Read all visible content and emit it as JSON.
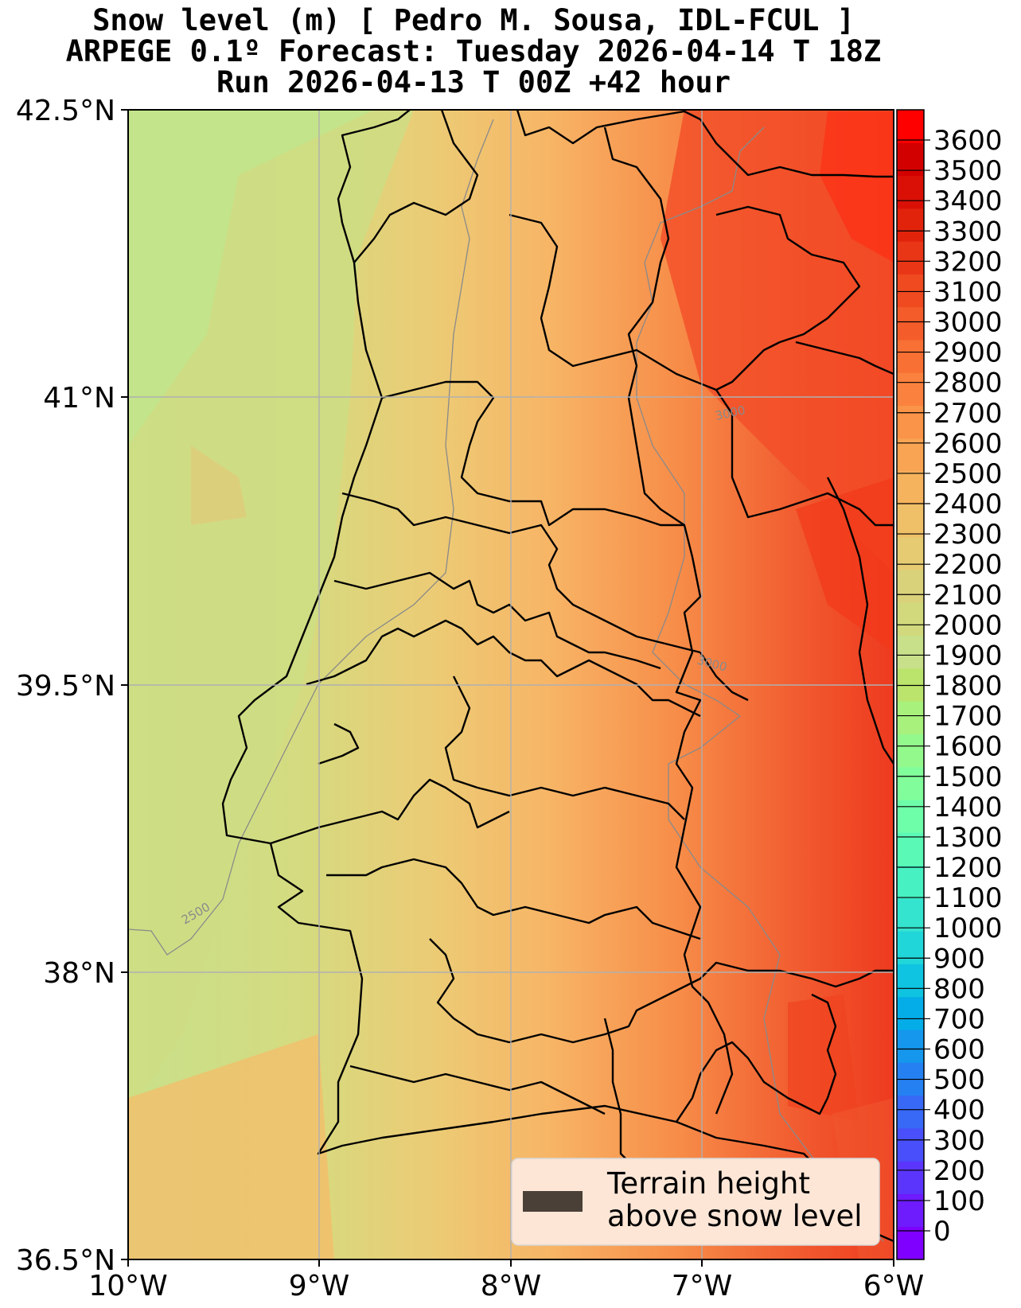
{
  "title": {
    "line1": "Snow level (m) [ Pedro M. Sousa, IDL-FCUL ]",
    "line2": "ARPEGE 0.1º Forecast: Tuesday 2026-04-14 T 18Z",
    "line3": "Run 2026-04-13 T 00Z +42 hour"
  },
  "map": {
    "lon_range": [
      -10,
      -6
    ],
    "lat_range": [
      36.5,
      42.5
    ],
    "x_ticks": [
      "10°W",
      "9°W",
      "8°W",
      "7°W",
      "6°W"
    ],
    "y_ticks": [
      "42.5°N",
      "41°N",
      "39.5°N",
      "38°N",
      "36.5°N"
    ],
    "grid": true,
    "contour_labels": [
      "2500",
      "3000",
      "3000"
    ],
    "region": "Portugal / western Iberia"
  },
  "legend": {
    "line1": "Terrain height",
    "line2": "above snow level",
    "swatch_color": "#4a4038",
    "placement": "bottom-right"
  },
  "colorbar": {
    "labels": [
      "0",
      "100",
      "200",
      "300",
      "400",
      "500",
      "600",
      "700",
      "800",
      "900",
      "1000",
      "1100",
      "1200",
      "1300",
      "1400",
      "1500",
      "1600",
      "1700",
      "1800",
      "1900",
      "2000",
      "2100",
      "2200",
      "2300",
      "2400",
      "2500",
      "2600",
      "2700",
      "2800",
      "2900",
      "3000",
      "3100",
      "3200",
      "3300",
      "3400",
      "3500",
      "3600"
    ],
    "colors": [
      "#7f00ff",
      "#6e1bfe",
      "#5b35fc",
      "#494ffa",
      "#3768f6",
      "#2581f2",
      "#1497ed",
      "#04ade8",
      "#0ec4e1",
      "#21d6d8",
      "#34e4ce",
      "#47f1c2",
      "#5bf9b6",
      "#6efea9",
      "#81fe9b",
      "#94f98c",
      "#a8f17d",
      "#bbe46d",
      "#c8e08a",
      "#d1d97c",
      "#dad27a",
      "#e6cb73",
      "#f0c068",
      "#f6b35e",
      "#f9a453",
      "#fa9448",
      "#fa823e",
      "#f87034",
      "#f45d2a",
      "#ef4a20",
      "#e93616",
      "#e2230c",
      "#da1006",
      "#d30000",
      "#ff0000"
    ]
  }
}
